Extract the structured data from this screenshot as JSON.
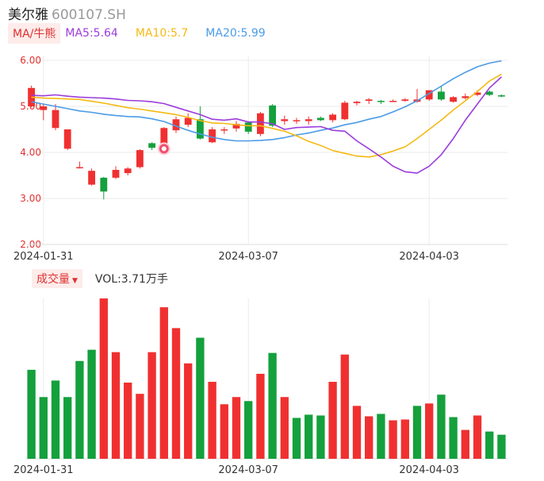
{
  "header": {
    "name": "美尔雅",
    "code": "600107.SH"
  },
  "ma_legend": {
    "tag": "MA/牛熊",
    "ma5": "MA5:5.64",
    "ma10": "MA10:5.7",
    "ma20": "MA20:5.99"
  },
  "volume_legend": {
    "tag": "成交量",
    "caret": "▼",
    "value": "VOL:3.71万手"
  },
  "colors": {
    "up": "#f03030",
    "down": "#14a03c",
    "ma5": "#9b3cdc",
    "ma10": "#f5b914",
    "ma20": "#4b9be6",
    "grid": "#ebebeb",
    "axis_text": "#e03030"
  },
  "icons": {
    "event_marker": "bull-bear-marker-icon"
  },
  "chart_data": [
    {
      "type": "candlestick",
      "y_ticks": [
        "6.00",
        "5.00",
        "4.00",
        "3.00",
        "2.00"
      ],
      "ylim": [
        2.0,
        6.0
      ],
      "x_ticks": [
        {
          "index": 1,
          "label": "2024-01-31"
        },
        {
          "index": 18,
          "label": "2024-03-07"
        },
        {
          "index": 33,
          "label": "2024-04-03"
        }
      ],
      "candles": [
        [
          5.0,
          5.4,
          5.45,
          4.98
        ],
        [
          4.92,
          5.0,
          5.05,
          4.7
        ],
        [
          4.53,
          4.92,
          5.05,
          4.48
        ],
        [
          4.08,
          4.5,
          4.5,
          4.05
        ],
        [
          3.68,
          3.68,
          3.8,
          3.65
        ],
        [
          3.3,
          3.6,
          3.65,
          3.28
        ],
        [
          3.45,
          3.15,
          3.47,
          2.98
        ],
        [
          3.45,
          3.62,
          3.7,
          3.42
        ],
        [
          3.55,
          3.65,
          3.68,
          3.5
        ],
        [
          3.68,
          4.05,
          4.07,
          3.65
        ],
        [
          4.2,
          4.1,
          4.22,
          4.05
        ],
        [
          4.1,
          4.53,
          4.55,
          4.08
        ],
        [
          4.48,
          4.72,
          4.78,
          4.42
        ],
        [
          4.6,
          4.75,
          4.85,
          4.55
        ],
        [
          4.72,
          4.3,
          5.0,
          4.28
        ],
        [
          4.22,
          4.5,
          4.55,
          4.2
        ],
        [
          4.48,
          4.5,
          4.55,
          4.4
        ],
        [
          4.52,
          4.62,
          4.68,
          4.45
        ],
        [
          4.65,
          4.45,
          4.68,
          4.4
        ],
        [
          4.4,
          4.85,
          4.88,
          4.35
        ],
        [
          5.02,
          4.58,
          5.05,
          4.55
        ],
        [
          4.68,
          4.72,
          4.8,
          4.6
        ],
        [
          4.7,
          4.7,
          4.75,
          4.62
        ],
        [
          4.68,
          4.72,
          4.78,
          4.6
        ],
        [
          4.75,
          4.7,
          4.78,
          4.68
        ],
        [
          4.7,
          4.82,
          4.85,
          4.65
        ],
        [
          4.72,
          5.08,
          5.12,
          4.7
        ],
        [
          5.07,
          5.1,
          5.12,
          5.02
        ],
        [
          5.12,
          5.15,
          5.18,
          5.05
        ],
        [
          5.12,
          5.1,
          5.14,
          5.05
        ],
        [
          5.12,
          5.12,
          5.15,
          5.1
        ],
        [
          5.12,
          5.15,
          5.18,
          5.1
        ],
        [
          5.1,
          5.15,
          5.38,
          5.08
        ],
        [
          5.15,
          5.35,
          5.35,
          5.12
        ],
        [
          5.32,
          5.15,
          5.45,
          5.12
        ],
        [
          5.1,
          5.2,
          5.22,
          5.08
        ],
        [
          5.18,
          5.22,
          5.28,
          5.15
        ],
        [
          5.25,
          5.3,
          5.35,
          5.22
        ],
        [
          5.32,
          5.25,
          5.35,
          5.22
        ],
        [
          5.24,
          5.22,
          5.26,
          5.2
        ]
      ],
      "ma5": [
        5.24,
        5.23,
        5.25,
        5.22,
        5.2,
        5.19,
        5.18,
        5.16,
        5.13,
        5.12,
        5.1,
        5.06,
        4.98,
        4.9,
        4.82,
        4.72,
        4.7,
        4.73,
        4.66,
        4.66,
        4.62,
        4.5,
        4.54,
        4.55,
        4.56,
        4.48,
        4.46,
        4.25,
        4.08,
        3.9,
        3.7,
        3.58,
        3.55,
        3.7,
        3.95,
        4.3,
        4.7,
        5.05,
        5.4,
        5.64
      ],
      "ma10": [
        5.2,
        5.18,
        5.17,
        5.16,
        5.15,
        5.11,
        5.07,
        5.02,
        4.97,
        4.94,
        4.9,
        4.86,
        4.82,
        4.76,
        4.69,
        4.64,
        4.63,
        4.6,
        4.58,
        4.58,
        4.52,
        4.46,
        4.36,
        4.24,
        4.15,
        4.04,
        3.98,
        3.92,
        3.9,
        3.95,
        4.03,
        4.12,
        4.3,
        4.5,
        4.7,
        4.92,
        5.12,
        5.32,
        5.55,
        5.7
      ],
      "ma20": [
        5.1,
        5.05,
        5.0,
        4.95,
        4.9,
        4.87,
        4.83,
        4.8,
        4.78,
        4.77,
        4.73,
        4.67,
        4.57,
        4.48,
        4.4,
        4.33,
        4.28,
        4.25,
        4.25,
        4.26,
        4.28,
        4.32,
        4.38,
        4.42,
        4.48,
        4.53,
        4.6,
        4.65,
        4.72,
        4.78,
        4.88,
        4.99,
        5.12,
        5.28,
        5.44,
        5.6,
        5.74,
        5.86,
        5.94,
        5.99
      ]
    },
    {
      "type": "bar",
      "name": "volume",
      "values": [
        5.55,
        3.85,
        4.88,
        3.85,
        6.1,
        6.8,
        10.0,
        6.65,
        4.75,
        4.05,
        6.65,
        9.45,
        8.15,
        5.95,
        7.55,
        4.8,
        3.4,
        3.85,
        3.6,
        5.3,
        6.6,
        3.85,
        2.55,
        2.75,
        2.7,
        4.8,
        6.5,
        3.3,
        2.65,
        2.8,
        2.4,
        2.45,
        3.3,
        3.45,
        4.0,
        2.6,
        1.8,
        2.7,
        1.7,
        1.5
      ],
      "up": [
        false,
        false,
        false,
        false,
        false,
        false,
        true,
        true,
        true,
        true,
        true,
        true,
        true,
        true,
        false,
        true,
        true,
        true,
        false,
        true,
        false,
        true,
        false,
        false,
        false,
        true,
        true,
        true,
        true,
        false,
        true,
        true,
        false,
        true,
        false,
        false,
        true,
        true,
        false,
        false
      ],
      "ylim": [
        0,
        10.0
      ]
    }
  ]
}
